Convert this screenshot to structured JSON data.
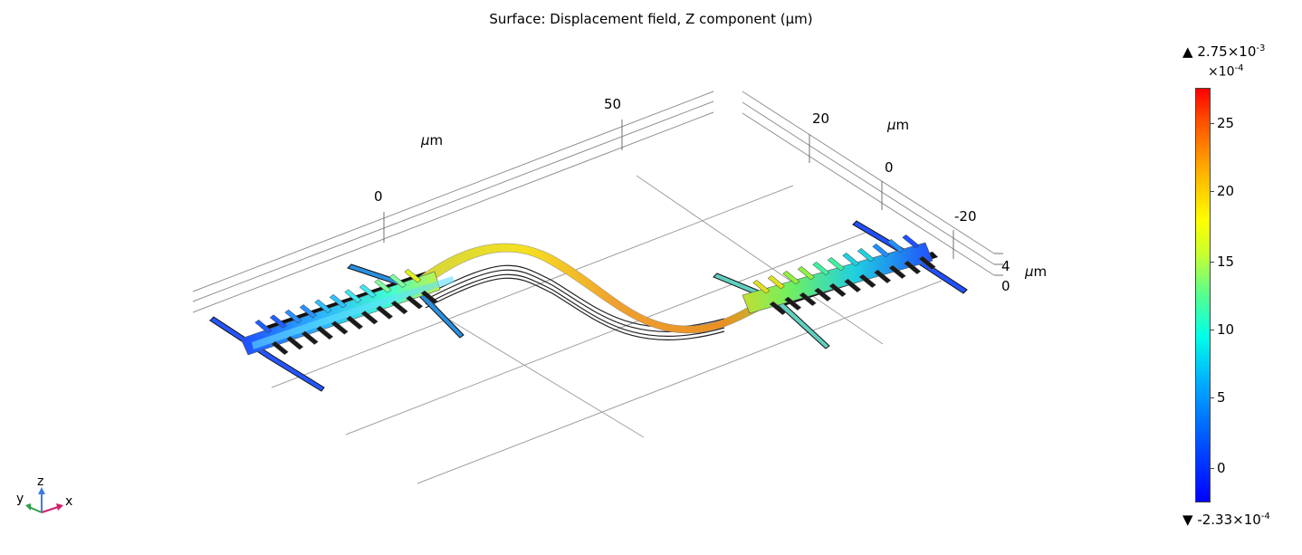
{
  "title": "Surface: Displacement field, Z component (μm)",
  "axes": {
    "y_ticks": [
      "0",
      "50"
    ],
    "x_ticks": [
      "20",
      "0",
      "-20"
    ],
    "z_ticks": [
      "4",
      "0"
    ],
    "unit_mu": "μ",
    "unit_m": "m"
  },
  "colorbar": {
    "max_label": "2.75×10",
    "max_exp": "-3",
    "scale_label": "×10",
    "scale_exp": "-4",
    "ticks": [
      "25",
      "20",
      "15",
      "10",
      "5",
      "0"
    ],
    "min_label": "-2.33×10",
    "min_exp": "-4",
    "colors": [
      "#0000ff",
      "#00a8ff",
      "#00ffe8",
      "#c8ff30",
      "#ffff00",
      "#ff5000",
      "#ff0000"
    ]
  },
  "triad": {
    "x": "x",
    "y": "y",
    "z": "z",
    "x_color": "#d0206e",
    "y_color": "#2aa04a",
    "z_color": "#3b7ddb"
  }
}
